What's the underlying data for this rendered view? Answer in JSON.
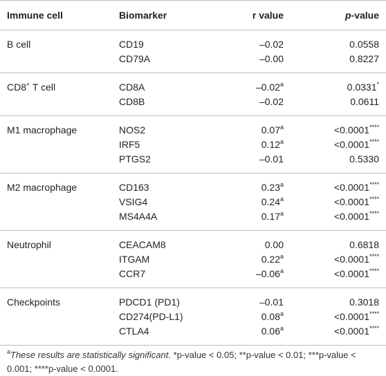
{
  "table": {
    "header": [
      [
        "Immune cell"
      ],
      [
        "Biomarker"
      ],
      [
        "r value"
      ],
      [
        {
          "i": "p"
        },
        "-value"
      ]
    ],
    "groups": [
      {
        "cell": [
          "B cell"
        ],
        "rows": [
          [
            [
              "CD19"
            ],
            [
              "–0.02"
            ],
            [
              "0.0558"
            ]
          ],
          [
            [
              "CD79A"
            ],
            [
              "–0.00"
            ],
            [
              "0.8227"
            ]
          ]
        ]
      },
      {
        "cell": [
          "CD8",
          {
            "sup": "+"
          },
          " T cell"
        ],
        "rows": [
          [
            [
              "CD8A"
            ],
            [
              "–0.02",
              {
                "sup": "a"
              }
            ],
            [
              "0.0331",
              {
                "sup": "*"
              }
            ]
          ],
          [
            [
              "CD8B"
            ],
            [
              "–0.02"
            ],
            [
              "0.0611"
            ]
          ]
        ]
      },
      {
        "cell": [
          "M1 macrophage"
        ],
        "rows": [
          [
            [
              "NOS2"
            ],
            [
              "0.07",
              {
                "sup": "a"
              }
            ],
            [
              "<0.0001",
              {
                "sup": "****"
              }
            ]
          ],
          [
            [
              "IRF5"
            ],
            [
              "0.12",
              {
                "sup": "a"
              }
            ],
            [
              "<0.0001",
              {
                "sup": "****"
              }
            ]
          ],
          [
            [
              "PTGS2"
            ],
            [
              "–0.01"
            ],
            [
              "0.5330"
            ]
          ]
        ]
      },
      {
        "cell": [
          "M2 macrophage"
        ],
        "rows": [
          [
            [
              "CD163"
            ],
            [
              "0.23",
              {
                "sup": "a"
              }
            ],
            [
              "<0.0001",
              {
                "sup": "****"
              }
            ]
          ],
          [
            [
              "VSIG4"
            ],
            [
              "0.24",
              {
                "sup": "a"
              }
            ],
            [
              "<0.0001",
              {
                "sup": "****"
              }
            ]
          ],
          [
            [
              "MS4A4A"
            ],
            [
              "0.17",
              {
                "sup": "a"
              }
            ],
            [
              "<0.0001",
              {
                "sup": "****"
              }
            ]
          ]
        ]
      },
      {
        "cell": [
          "Neutrophil"
        ],
        "rows": [
          [
            [
              "CEACAM8"
            ],
            [
              "0.00"
            ],
            [
              "0.6818"
            ]
          ],
          [
            [
              "ITGAM"
            ],
            [
              "0.22",
              {
                "sup": "a"
              }
            ],
            [
              "<0.0001",
              {
                "sup": "****"
              }
            ]
          ],
          [
            [
              "CCR7"
            ],
            [
              "–0.06",
              {
                "sup": "a"
              }
            ],
            [
              "<0.0001",
              {
                "sup": "****"
              }
            ]
          ]
        ]
      },
      {
        "cell": [
          "Checkpoints"
        ],
        "rows": [
          [
            [
              "PDCD1 (PD1)"
            ],
            [
              "–0.01"
            ],
            [
              "0.3018"
            ]
          ],
          [
            [
              "CD274(PD-L1)"
            ],
            [
              "0.08",
              {
                "sup": "a"
              }
            ],
            [
              "<0.0001",
              {
                "sup": "****"
              }
            ]
          ],
          [
            [
              "CTLA4"
            ],
            [
              "0.06",
              {
                "sup": "a"
              }
            ],
            [
              "<0.0001",
              {
                "sup": "****"
              }
            ]
          ]
        ]
      }
    ]
  },
  "footnote": [
    {
      "sup": "a"
    },
    {
      "i": "These results are statistically significant."
    },
    " *p-value < 0.05; **p-value < 0.01; ***p-value < 0.001; ****p-value < 0.0001."
  ]
}
